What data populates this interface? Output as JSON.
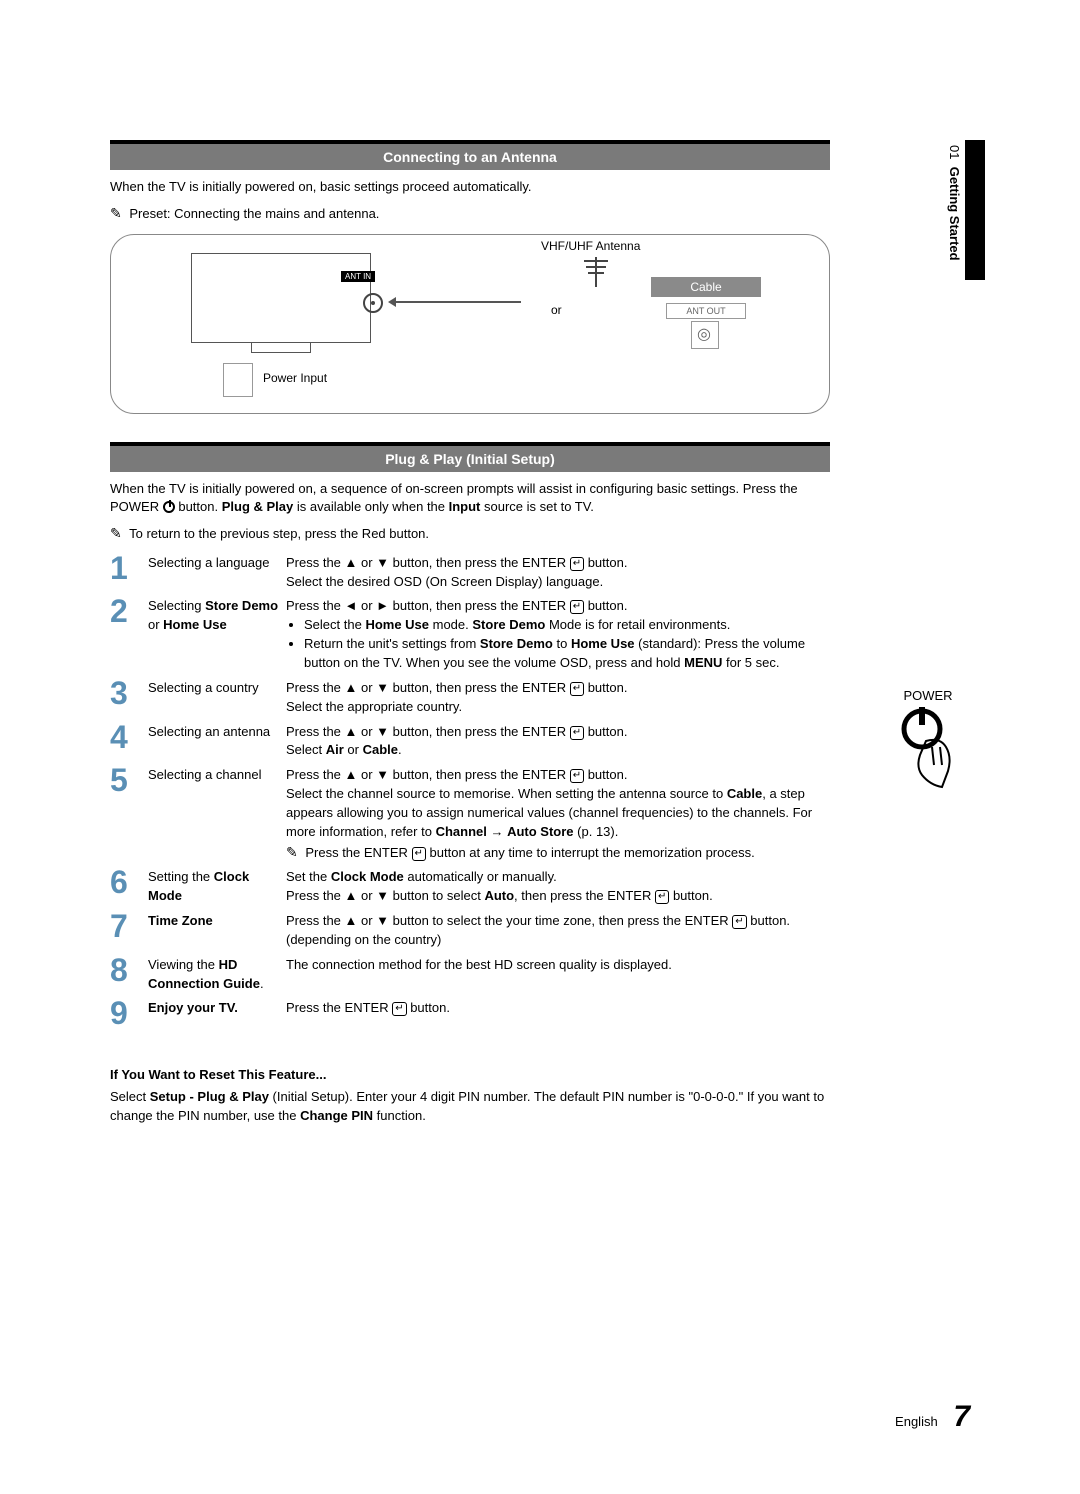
{
  "side": {
    "num": "01",
    "label": "Getting Started"
  },
  "s1": {
    "title": "Connecting to an Antenna",
    "intro": "When the TV is initially powered on, basic settings proceed automatically.",
    "note": "Preset: Connecting the mains and antenna.",
    "diagram": {
      "vhf": "VHF/UHF Antenna",
      "or": "or",
      "cable": "Cable",
      "antout": "ANT OUT",
      "antin": "ANT IN",
      "power": "Power Input"
    }
  },
  "s2": {
    "title": "Plug & Play (Initial Setup)",
    "intro_a": "When the TV is initially powered on, a sequence of on-screen prompts will assist in configuring basic settings. Press the POWER ",
    "intro_b": " button. ",
    "intro_c": "Plug & Play",
    "intro_d": " is available only when the ",
    "intro_e": "Input",
    "intro_f": " source is set to TV.",
    "note": "To return to the previous step, press the Red button.",
    "power_label": "POWER"
  },
  "steps": [
    {
      "n": "1",
      "title": "Selecting a language",
      "body": "Press the ▲ or ▼ button, then press the ENTER {E} button.\nSelect the desired OSD (On Screen Display) language."
    },
    {
      "n": "2",
      "title_a": "Selecting ",
      "title_b": "Store Demo",
      "title_c": " or ",
      "title_d": "Home Use",
      "body_a": "Press the ◄ or ► button, then press the ENTER {E} button.",
      "bullet1_a": "Select the ",
      "bullet1_b": "Home Use",
      "bullet1_c": " mode. ",
      "bullet1_d": "Store Demo",
      "bullet1_e": " Mode is for retail environments.",
      "bullet2_a": "Return the unit's settings from ",
      "bullet2_b": "Store Demo",
      "bullet2_c": " to ",
      "bullet2_d": "Home Use",
      "bullet2_e": " (standard): Press the volume button on the TV. When you see the volume OSD, press and hold ",
      "bullet2_f": "MENU",
      "bullet2_g": " for 5 sec."
    },
    {
      "n": "3",
      "title": "Selecting a country",
      "body": "Press the ▲ or ▼ button, then press the ENTER {E} button.\nSelect the appropriate country."
    },
    {
      "n": "4",
      "title": "Selecting an antenna",
      "body_a": "Press the ▲ or ▼ button, then press the ENTER {E} button.\nSelect ",
      "body_b": "Air",
      "body_c": " or ",
      "body_d": "Cable",
      "body_e": "."
    },
    {
      "n": "5",
      "title": "Selecting a channel",
      "body_a": "Press the ▲ or ▼ button, then press the ENTER {E} button.\nSelect the channel source to memorise. When setting the antenna source to ",
      "body_b": "Cable",
      "body_c": ", a step appears allowing you to assign numerical values (channel frequencies) to the channels. For more information, refer to ",
      "body_d": "Channel",
      "body_e": " → ",
      "body_f": "Auto Store",
      "body_g": " (p. 13).",
      "note": "Press the ENTER {E} button at any time to interrupt the memorization process."
    },
    {
      "n": "6",
      "title_a": "Setting the ",
      "title_b": "Clock Mode",
      "body_a": "Set the ",
      "body_b": "Clock Mode",
      "body_c": " automatically or manually.\nPress the ▲ or ▼ button to select ",
      "body_d": "Auto",
      "body_e": ", then press the ENTER {E} button."
    },
    {
      "n": "7",
      "title": "Time Zone",
      "title_bold": true,
      "body": "Press the ▲ or ▼ button to select the your time zone, then press the ENTER {E} button. (depending on the country)"
    },
    {
      "n": "8",
      "title_a": "Viewing the ",
      "title_b": "HD Connection Guide",
      "title_c": ".",
      "body": "The connection method for the best HD screen quality is displayed."
    },
    {
      "n": "9",
      "title": "Enjoy your TV.",
      "title_bold": true,
      "body": "Press the ENTER {E} button."
    }
  ],
  "reset": {
    "head": "If You Want to Reset This Feature...",
    "body_a": "Select ",
    "body_b": "Setup - Plug & Play",
    "body_c": " (Initial Setup). Enter your 4 digit PIN number. The default PIN number is \"0-0-0-0.\" If you want to change the PIN number, use the ",
    "body_d": "Change PIN",
    "body_e": " function."
  },
  "footer": {
    "lang": "English",
    "page": "7"
  },
  "colors": {
    "step_num": "#5a8fb5",
    "bar_bg": "#7a7a7a",
    "bar_top": "#000000"
  }
}
